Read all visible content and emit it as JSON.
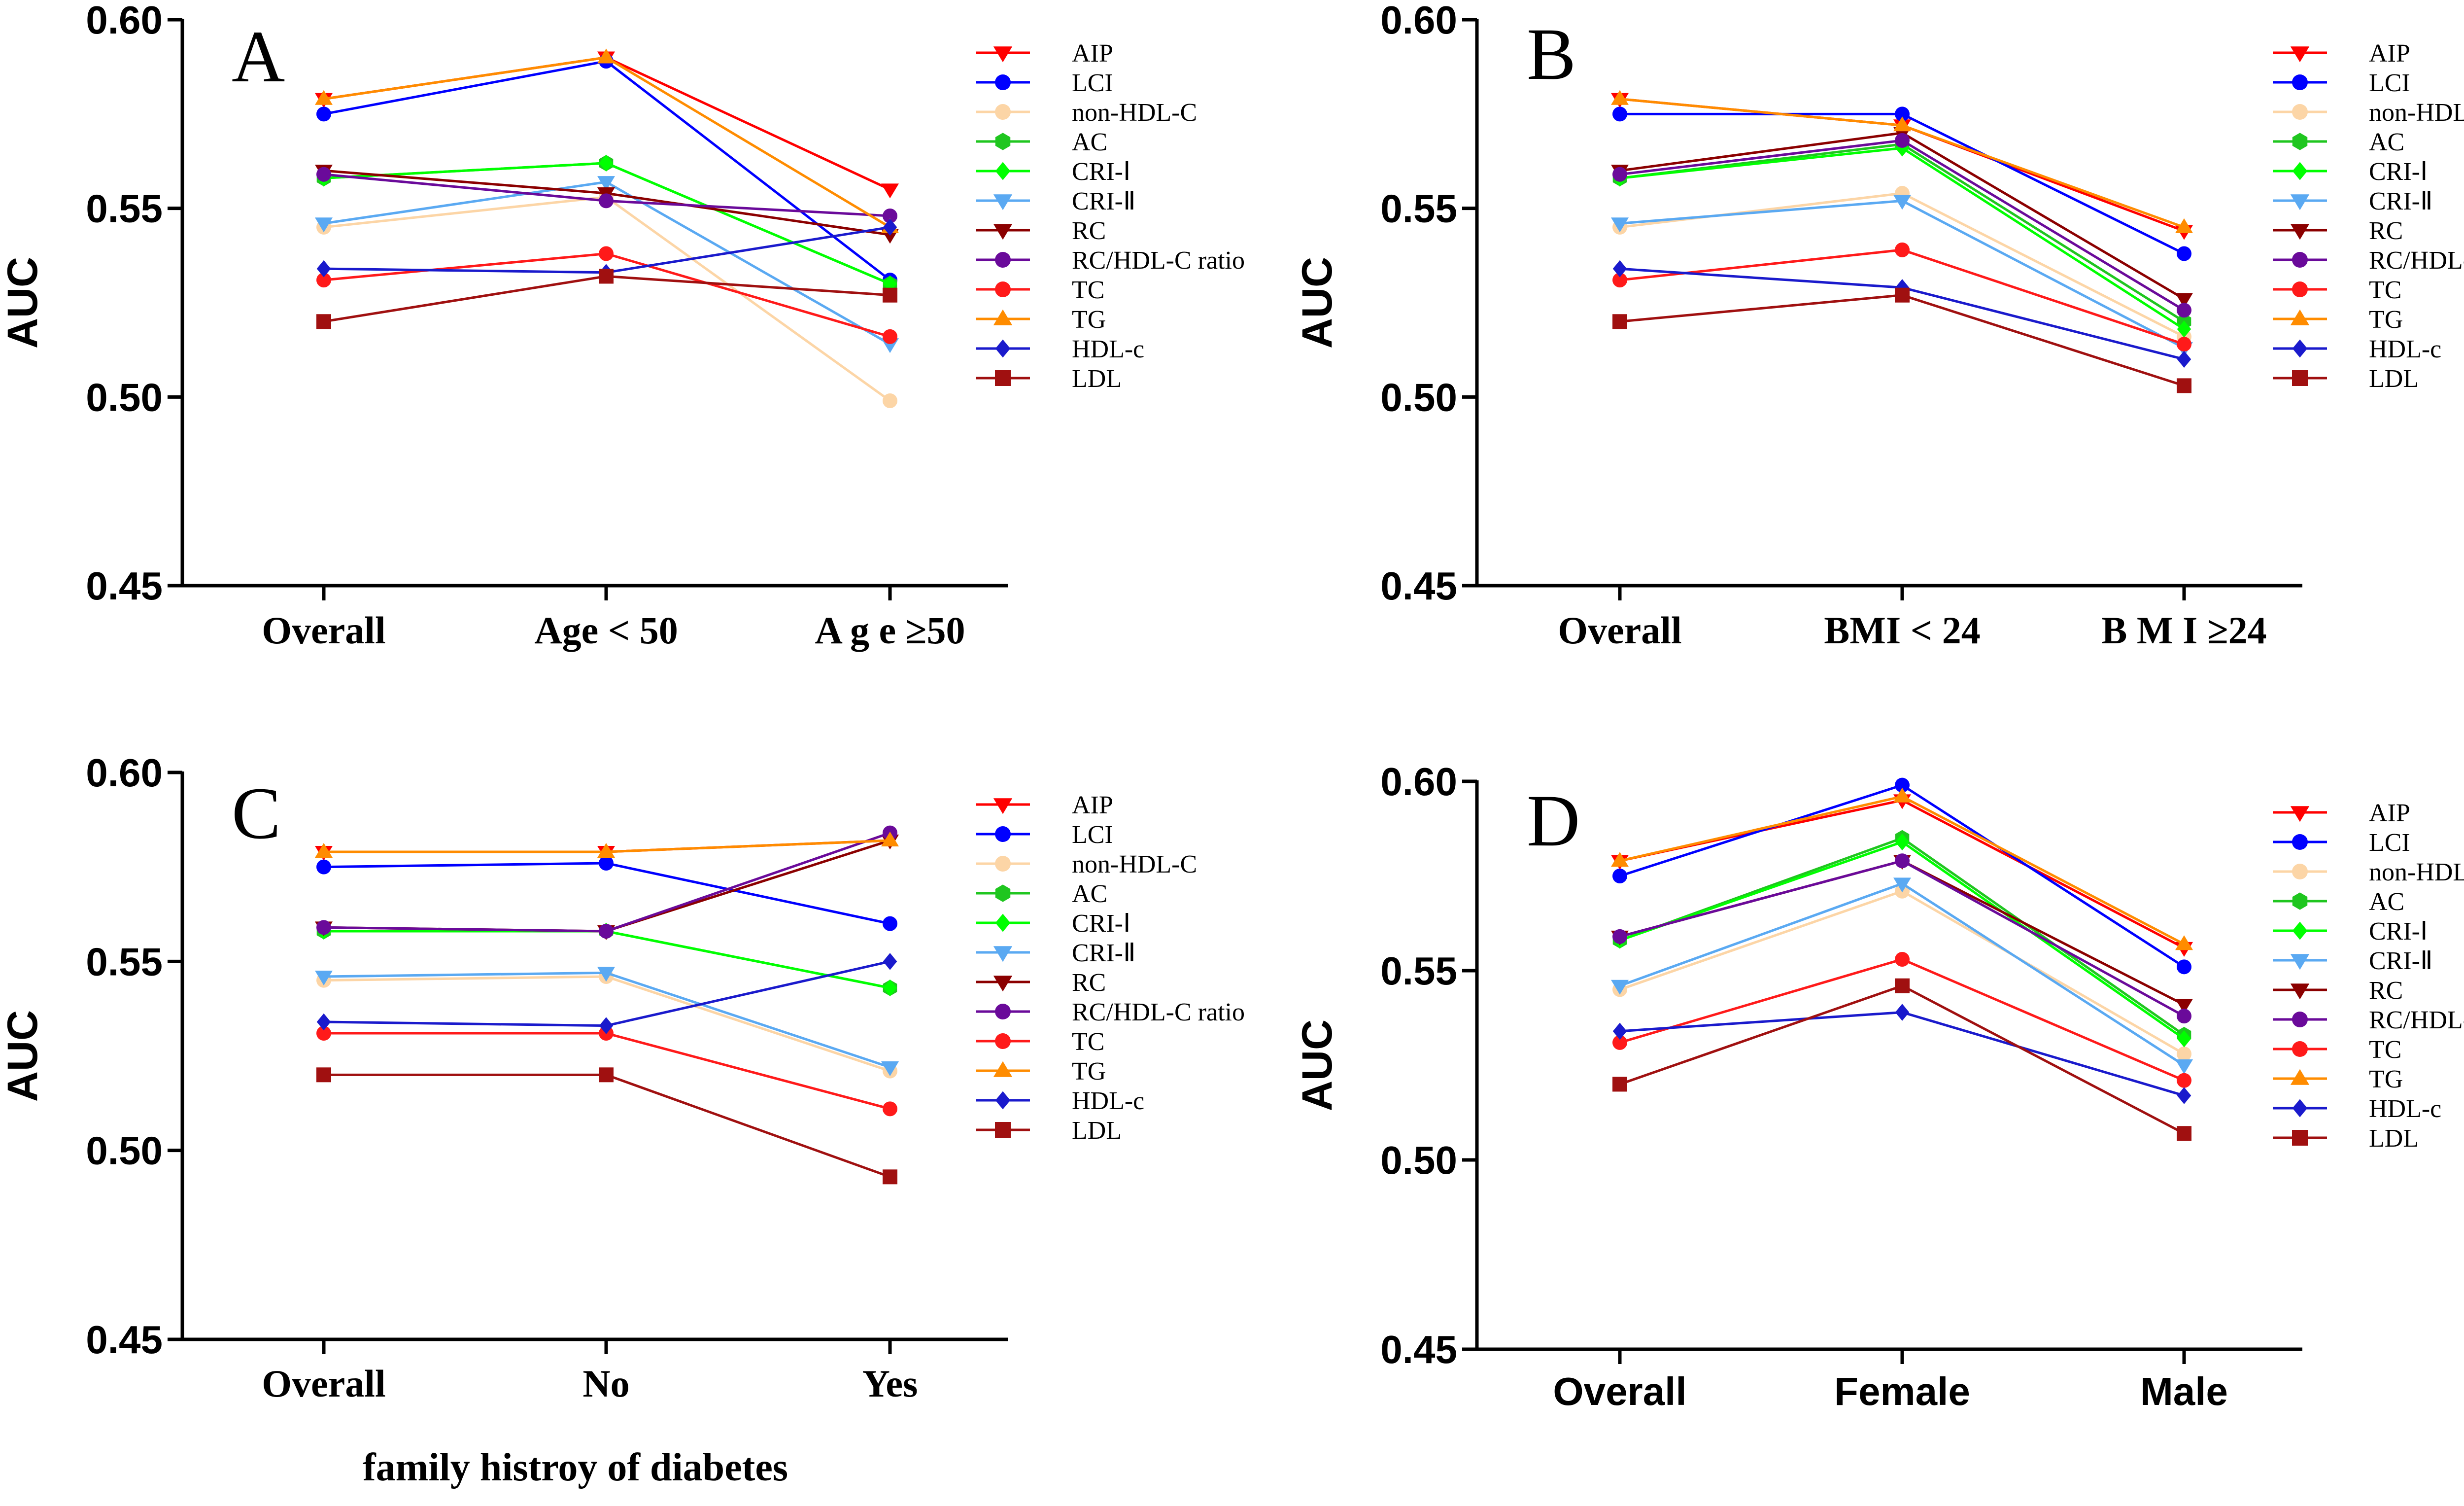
{
  "series_styles": [
    {
      "name": "AIP",
      "color": "#ff0000",
      "marker": "triangle-down"
    },
    {
      "name": "LCI",
      "color": "#0000ff",
      "marker": "circle"
    },
    {
      "name": "non-HDL-C",
      "color": "#fcd5a6",
      "marker": "circle"
    },
    {
      "name": "AC",
      "color": "#1fc61f",
      "marker": "hexagon"
    },
    {
      "name": "CRI-Ⅰ",
      "color": "#00ff00",
      "marker": "diamond"
    },
    {
      "name": "CRI-Ⅱ",
      "color": "#5aa9f2",
      "marker": "triangle-down"
    },
    {
      "name": "RC",
      "color": "#8b0000",
      "marker": "triangle-down"
    },
    {
      "name": "RC/HDL-C ratio",
      "color": "#6a0a9a",
      "marker": "circle"
    },
    {
      "name": "TC",
      "color": "#ff1a1a",
      "marker": "circle"
    },
    {
      "name": "TG",
      "color": "#ff8c00",
      "marker": "triangle-up"
    },
    {
      "name": "HDL-c",
      "color": "#1a1acc",
      "marker": "diamond"
    },
    {
      "name": "LDL",
      "color": "#a01010",
      "marker": "square"
    }
  ],
  "chart_data": [
    {
      "panel": "A",
      "type": "line",
      "ylabel": "AUC",
      "xlabel": "",
      "ylim": [
        0.45,
        0.6
      ],
      "yticks": [
        "0.45",
        "0.50",
        "0.55",
        "0.60"
      ],
      "categories": [
        "Overall",
        "Age < 50",
        "A g e  ≥50"
      ],
      "category_font": "serif",
      "series": [
        {
          "name": "AIP",
          "values": [
            0.579,
            0.59,
            0.555
          ]
        },
        {
          "name": "LCI",
          "values": [
            0.575,
            0.589,
            0.531
          ]
        },
        {
          "name": "non-HDL-C",
          "values": [
            0.545,
            0.553,
            0.499
          ]
        },
        {
          "name": "AC",
          "values": [
            0.558,
            0.562,
            0.53
          ]
        },
        {
          "name": "CRI-Ⅰ",
          "values": [
            0.558,
            0.562,
            0.53
          ]
        },
        {
          "name": "CRI-Ⅱ",
          "values": [
            0.546,
            0.557,
            0.514
          ]
        },
        {
          "name": "RC",
          "values": [
            0.56,
            0.554,
            0.543
          ]
        },
        {
          "name": "RC/HDL-C ratio",
          "values": [
            0.559,
            0.552,
            0.548
          ]
        },
        {
          "name": "TC",
          "values": [
            0.531,
            0.538,
            0.516
          ]
        },
        {
          "name": "TG",
          "values": [
            0.579,
            0.59,
            0.545
          ]
        },
        {
          "name": "HDL-c",
          "values": [
            0.534,
            0.533,
            0.545
          ]
        },
        {
          "name": "LDL",
          "values": [
            0.52,
            0.532,
            0.527
          ]
        }
      ]
    },
    {
      "panel": "B",
      "type": "line",
      "ylabel": "AUC",
      "xlabel": "",
      "ylim": [
        0.45,
        0.6
      ],
      "yticks": [
        "0.45",
        "0.50",
        "0.55",
        "0.60"
      ],
      "categories": [
        "Overall",
        "BMI < 24",
        "B M I  ≥24"
      ],
      "category_font": "serif",
      "series": [
        {
          "name": "AIP",
          "values": [
            0.579,
            0.572,
            0.544
          ]
        },
        {
          "name": "LCI",
          "values": [
            0.575,
            0.575,
            0.538
          ]
        },
        {
          "name": "non-HDL-C",
          "values": [
            0.545,
            0.554,
            0.516
          ]
        },
        {
          "name": "AC",
          "values": [
            0.558,
            0.567,
            0.52
          ]
        },
        {
          "name": "CRI-Ⅰ",
          "values": [
            0.558,
            0.566,
            0.518
          ]
        },
        {
          "name": "CRI-Ⅱ",
          "values": [
            0.546,
            0.552,
            0.513
          ]
        },
        {
          "name": "RC",
          "values": [
            0.56,
            0.57,
            0.526
          ]
        },
        {
          "name": "RC/HDL-C ratio",
          "values": [
            0.559,
            0.568,
            0.523
          ]
        },
        {
          "name": "TC",
          "values": [
            0.531,
            0.539,
            0.514
          ]
        },
        {
          "name": "TG",
          "values": [
            0.579,
            0.572,
            0.545
          ]
        },
        {
          "name": "HDL-c",
          "values": [
            0.534,
            0.529,
            0.51
          ]
        },
        {
          "name": "LDL",
          "values": [
            0.52,
            0.527,
            0.503
          ]
        }
      ]
    },
    {
      "panel": "C",
      "type": "line",
      "ylabel": "AUC",
      "xlabel": "family histroy of diabetes",
      "ylim": [
        0.45,
        0.6
      ],
      "yticks": [
        "0.45",
        "0.50",
        "0.55",
        "0.60"
      ],
      "categories": [
        "Overall",
        "No",
        "Yes"
      ],
      "category_font": "serif",
      "series": [
        {
          "name": "AIP",
          "values": [
            0.579,
            0.579,
            0.582
          ]
        },
        {
          "name": "LCI",
          "values": [
            0.575,
            0.576,
            0.56
          ]
        },
        {
          "name": "non-HDL-C",
          "values": [
            0.545,
            0.546,
            0.521
          ]
        },
        {
          "name": "AC",
          "values": [
            0.558,
            0.558,
            0.543
          ]
        },
        {
          "name": "CRI-Ⅰ",
          "values": [
            0.558,
            0.558,
            0.543
          ]
        },
        {
          "name": "CRI-Ⅱ",
          "values": [
            0.546,
            0.547,
            0.522
          ]
        },
        {
          "name": "RC",
          "values": [
            0.559,
            0.558,
            0.582
          ]
        },
        {
          "name": "RC/HDL-C ratio",
          "values": [
            0.559,
            0.558,
            0.584
          ]
        },
        {
          "name": "TC",
          "values": [
            0.531,
            0.531,
            0.511
          ]
        },
        {
          "name": "TG",
          "values": [
            0.579,
            0.579,
            0.582
          ]
        },
        {
          "name": "HDL-c",
          "values": [
            0.534,
            0.533,
            0.55
          ]
        },
        {
          "name": "LDL",
          "values": [
            0.52,
            0.52,
            0.493
          ]
        }
      ]
    },
    {
      "panel": "D",
      "type": "line",
      "ylabel": "AUC",
      "xlabel": "",
      "ylim": [
        0.45,
        0.6
      ],
      "yticks": [
        "0.45",
        "0.50",
        "0.55",
        "0.60"
      ],
      "categories": [
        "Overall",
        "Female",
        "Male"
      ],
      "category_font": "sans",
      "series": [
        {
          "name": "AIP",
          "values": [
            0.579,
            0.595,
            0.556
          ]
        },
        {
          "name": "LCI",
          "values": [
            0.575,
            0.599,
            0.551
          ]
        },
        {
          "name": "non-HDL-C",
          "values": [
            0.545,
            0.571,
            0.528
          ]
        },
        {
          "name": "AC",
          "values": [
            0.558,
            0.585,
            0.533
          ]
        },
        {
          "name": "CRI-Ⅰ",
          "values": [
            0.558,
            0.584,
            0.532
          ]
        },
        {
          "name": "CRI-Ⅱ",
          "values": [
            0.546,
            0.573,
            0.525
          ]
        },
        {
          "name": "RC",
          "values": [
            0.559,
            0.579,
            0.541
          ]
        },
        {
          "name": "RC/HDL-C ratio",
          "values": [
            0.559,
            0.579,
            0.538
          ]
        },
        {
          "name": "TC",
          "values": [
            0.531,
            0.553,
            0.521
          ]
        },
        {
          "name": "TG",
          "values": [
            0.579,
            0.596,
            0.557
          ]
        },
        {
          "name": "HDL-c",
          "values": [
            0.534,
            0.539,
            0.517
          ]
        },
        {
          "name": "LDL",
          "values": [
            0.52,
            0.546,
            0.507
          ]
        }
      ]
    }
  ]
}
